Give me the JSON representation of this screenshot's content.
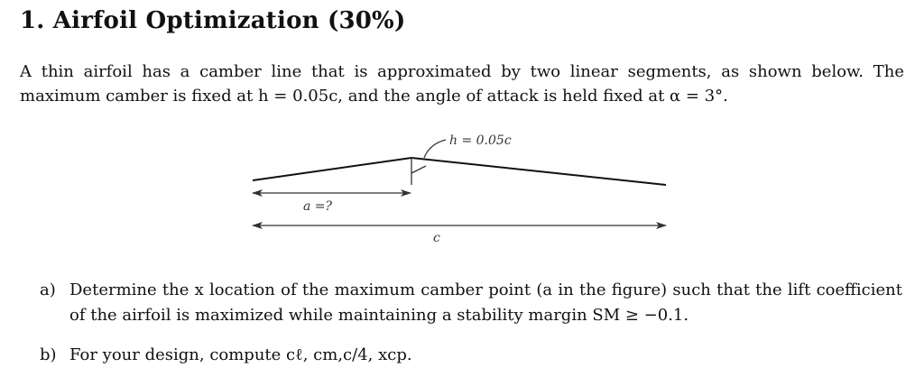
{
  "problem": {
    "title": "1.  Airfoil Optimization (30%)",
    "intro": "A thin airfoil has a camber line that is approximated by two linear segments, as shown below. The maximum camber is fixed at h = 0.05c, and the angle of attack is held fixed at α = 3°."
  },
  "figure": {
    "h_label": "h = 0.05c",
    "a_label": "a =?",
    "c_label": "c"
  },
  "parts": [
    {
      "label": "a)",
      "text": "Determine the x location of the maximum camber point (a in the figure) such that the lift coefficient of the airfoil is maximized while maintaining a stability margin SM ≥ −0.1."
    },
    {
      "label": "b)",
      "text": "For your design, compute cℓ, cm,c/4, xcp."
    }
  ]
}
